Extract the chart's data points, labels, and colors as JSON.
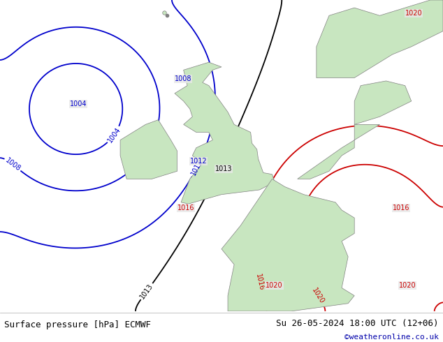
{
  "title_left": "Surface pressure [hPa] ECMWF",
  "title_right": "Su 26-05-2024 18:00 UTC (12+06)",
  "credit": "©weatheronline.co.uk",
  "bg_color": "#d8d8d8",
  "land_color": "#c8e6c0",
  "sea_color": "#e8e8e8",
  "black_isobar_color": "#000000",
  "blue_isobar_color": "#0000cc",
  "red_isobar_color": "#cc0000",
  "label_fontsize": 8,
  "footer_fontsize": 9,
  "credit_fontsize": 8,
  "figsize": [
    6.34,
    4.9
  ],
  "dpi": 100
}
